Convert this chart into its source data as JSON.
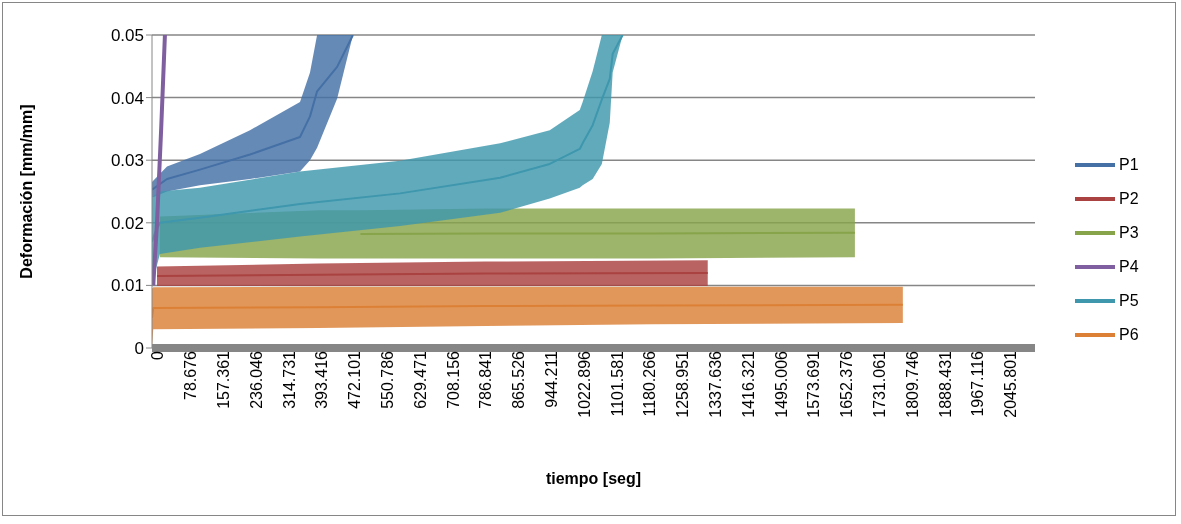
{
  "chart_data": {
    "type": "line",
    "xlabel": "tiempo [seg]",
    "ylabel": "Deformación [mm/mm]",
    "xlim": [
      0,
      2118
    ],
    "xticks": [
      0,
      78.676,
      157.361,
      236.046,
      314.731,
      393.416,
      472.101,
      550.786,
      629.471,
      708.156,
      786.841,
      865.526,
      944.211,
      1022.896,
      1101.581,
      1180.266,
      1258.951,
      1337.636,
      1416.321,
      1495.006,
      1573.691,
      1652.376,
      1731.061,
      1809.746,
      1888.431,
      1967.116,
      2045.801
    ],
    "ylim": [
      0,
      0.05
    ],
    "yticks": [
      0,
      0.01,
      0.02,
      0.03,
      0.04,
      0.05
    ],
    "grid": "y",
    "legend": "right",
    "series": [
      {
        "name": "P1",
        "color": "#4470a6",
        "x": [
          0,
          36,
          115,
          235,
          355,
          379,
          396,
          444,
          482
        ],
        "values": [
          0.0253,
          0.027,
          0.0285,
          0.0309,
          0.0337,
          0.037,
          0.041,
          0.0449,
          0.05
        ],
        "lower": [
          0.024,
          0.025,
          0.026,
          0.027,
          0.0282,
          0.03,
          0.032,
          0.0398,
          0.05
        ],
        "upper": [
          0.0265,
          0.029,
          0.031,
          0.0348,
          0.0393,
          0.044,
          0.05,
          0.05,
          0.05
        ]
      },
      {
        "name": "P2",
        "color": "#a94240",
        "x": [
          12,
          400,
          800,
          1333
        ],
        "values": [
          0.0115,
          0.0117,
          0.0119,
          0.012
        ],
        "lower": [
          0.0099,
          0.0099,
          0.0099,
          0.0099
        ],
        "upper": [
          0.013,
          0.0135,
          0.0138,
          0.014
        ]
      },
      {
        "name": "P3",
        "color": "#87a44a",
        "x": [
          19,
          400,
          500,
          800,
          1200,
          1686
        ],
        "values": [
          null,
          null,
          0.0182,
          0.0183,
          0.0183,
          0.0184
        ],
        "lower": [
          0.0145,
          0.0143,
          0.0143,
          0.0143,
          0.0143,
          0.0145
        ],
        "upper": [
          0.021,
          0.022,
          0.022,
          0.0223,
          0.0223,
          0.0223
        ]
      },
      {
        "name": "P4",
        "color": "#7f5f9f",
        "x": [
          3,
          12,
          22,
          31
        ],
        "values": [
          0.01,
          0.02,
          0.035,
          0.05
        ]
      },
      {
        "name": "P5",
        "color": "#3e97ad",
        "x": [
          0,
          7,
          19,
          115,
          355,
          595,
          835,
          954,
          1026,
          1033,
          1057,
          1079,
          1098,
          1105,
          1129
        ],
        "values": [
          0.017,
          0.0183,
          0.02,
          0.0208,
          0.023,
          0.0247,
          0.0272,
          0.0294,
          0.0318,
          0.0327,
          0.0356,
          0.0397,
          0.043,
          0.047,
          0.05
        ],
        "lower": [
          0.01,
          0.012,
          0.015,
          0.016,
          0.0178,
          0.0195,
          0.0216,
          0.0239,
          0.0256,
          0.026,
          0.027,
          0.0294,
          0.036,
          0.044,
          0.05
        ],
        "upper": [
          0.024,
          0.0245,
          0.025,
          0.0256,
          0.0282,
          0.0299,
          0.0327,
          0.0348,
          0.038,
          0.0393,
          0.0442,
          0.05,
          0.05,
          0.05,
          0.05
        ]
      },
      {
        "name": "P6",
        "color": "#dc8036",
        "x": [
          0,
          3,
          400,
          800,
          1200,
          1801
        ],
        "values": [
          0.0048,
          0.0064,
          0.0065,
          0.0067,
          0.0068,
          0.0069
        ],
        "lower": [
          0,
          0.003,
          0.0032,
          0.0035,
          0.0038,
          0.004
        ],
        "upper": [
          0.0095,
          0.0097,
          0.0098,
          0.0098,
          0.0098,
          0.0098
        ]
      }
    ]
  }
}
